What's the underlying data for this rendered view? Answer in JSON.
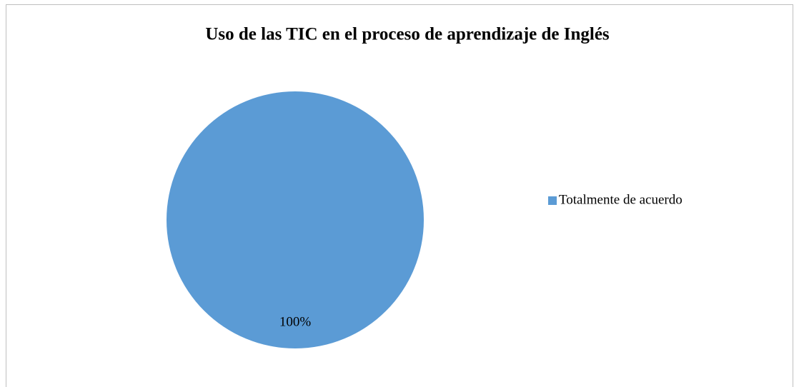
{
  "chart_data": {
    "type": "pie",
    "title": "Uso de las TIC en el proceso de aprendizaje de Inglés",
    "categories": [
      "Totalmente de acuerdo"
    ],
    "values": [
      100
    ],
    "value_labels": [
      "100%"
    ],
    "colors": [
      "#5b9bd5"
    ],
    "legend": "right"
  }
}
